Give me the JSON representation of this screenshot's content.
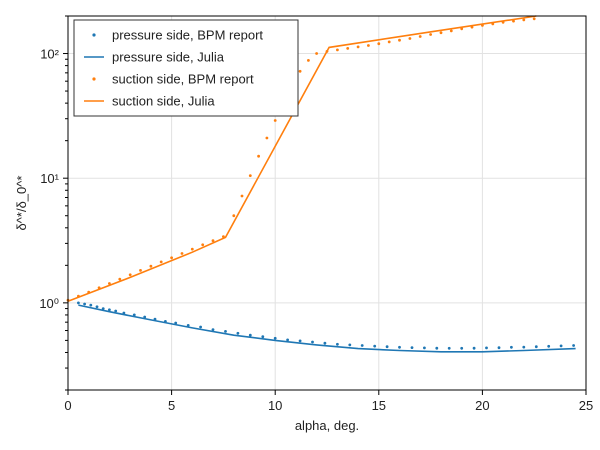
{
  "chart_data": {
    "type": "line",
    "xlabel": "alpha, deg.",
    "ylabel": "δ^*/δ_0^*",
    "xlim": [
      0,
      25
    ],
    "ylim": [
      0.2,
      200
    ],
    "yscale": "log",
    "grid": true,
    "legend_position": "top-left",
    "x_ticks": [
      0,
      5,
      10,
      15,
      20,
      25
    ],
    "x_tick_labels": [
      "0",
      "5",
      "10",
      "15",
      "20",
      "25"
    ],
    "y_ticks": [
      1,
      10,
      100
    ],
    "y_tick_labels": [
      "10⁰",
      "10¹",
      "10²"
    ],
    "series": [
      {
        "name": "pressure side, BPM report",
        "style": "points",
        "color": "#1f77b4",
        "x": [
          0.5,
          0.8,
          1.1,
          1.4,
          1.7,
          2.0,
          2.3,
          2.7,
          3.2,
          3.7,
          4.2,
          4.7,
          5.2,
          5.8,
          6.4,
          7.0,
          7.6,
          8.2,
          8.8,
          9.4,
          10.0,
          10.6,
          11.2,
          11.8,
          12.4,
          13.0,
          13.6,
          14.2,
          14.8,
          15.4,
          16.0,
          16.6,
          17.2,
          17.8,
          18.4,
          19.0,
          19.6,
          20.2,
          20.8,
          21.4,
          22.0,
          22.6,
          23.2,
          23.8,
          24.4
        ],
        "y": [
          1.0,
          0.98,
          0.96,
          0.93,
          0.9,
          0.88,
          0.86,
          0.83,
          0.8,
          0.77,
          0.74,
          0.71,
          0.69,
          0.66,
          0.64,
          0.61,
          0.59,
          0.57,
          0.55,
          0.535,
          0.52,
          0.505,
          0.495,
          0.485,
          0.475,
          0.465,
          0.46,
          0.455,
          0.45,
          0.445,
          0.44,
          0.438,
          0.435,
          0.433,
          0.432,
          0.432,
          0.433,
          0.435,
          0.437,
          0.44,
          0.442,
          0.445,
          0.448,
          0.452,
          0.455
        ]
      },
      {
        "name": "pressure side, Julia",
        "style": "line",
        "color": "#1f77b4",
        "x": [
          0.5,
          2,
          4,
          6,
          8,
          10,
          12,
          14,
          16,
          18,
          20,
          22,
          24.5
        ],
        "y": [
          0.96,
          0.85,
          0.73,
          0.63,
          0.55,
          0.5,
          0.46,
          0.43,
          0.415,
          0.405,
          0.405,
          0.415,
          0.43
        ]
      },
      {
        "name": "suction side, BPM report",
        "style": "points",
        "color": "#ff7f0e",
        "x": [
          0.0,
          0.5,
          1.0,
          1.5,
          2.0,
          2.5,
          3.0,
          3.5,
          4.0,
          4.5,
          5.0,
          5.5,
          6.0,
          6.5,
          7.0,
          7.5,
          8.0,
          8.4,
          8.8,
          9.2,
          9.6,
          10.0,
          10.4,
          10.8,
          11.2,
          11.6,
          12.0,
          12.5,
          13.0,
          13.5,
          14.0,
          14.5,
          15.0,
          15.5,
          16.0,
          16.5,
          17.0,
          17.5,
          18.0,
          18.5,
          19.0,
          19.5,
          20.0,
          20.5,
          21.0,
          21.5,
          22.0,
          22.5
        ],
        "y": [
          1.05,
          1.13,
          1.22,
          1.32,
          1.43,
          1.55,
          1.68,
          1.82,
          1.97,
          2.13,
          2.3,
          2.49,
          2.7,
          2.92,
          3.15,
          3.4,
          5.0,
          7.2,
          10.5,
          15.0,
          21.0,
          29.0,
          40.0,
          55.0,
          72.0,
          88.0,
          100.0,
          104.0,
          107.0,
          110.0,
          113.0,
          116.0,
          120.0,
          124.0,
          128.0,
          132.0,
          137.0,
          142.0,
          147.0,
          152.0,
          158.0,
          163.0,
          168.0,
          173.0,
          178.0,
          182.0,
          186.0,
          190.0
        ]
      },
      {
        "name": "suction side, Julia",
        "style": "line",
        "color": "#ff7f0e",
        "x": [
          0.0,
          3.0,
          6.0,
          7.6,
          12.6,
          17.6,
          22.6
        ],
        "y": [
          1.03,
          1.6,
          2.55,
          3.35,
          112.0,
          150.0,
          200.0
        ]
      }
    ]
  }
}
